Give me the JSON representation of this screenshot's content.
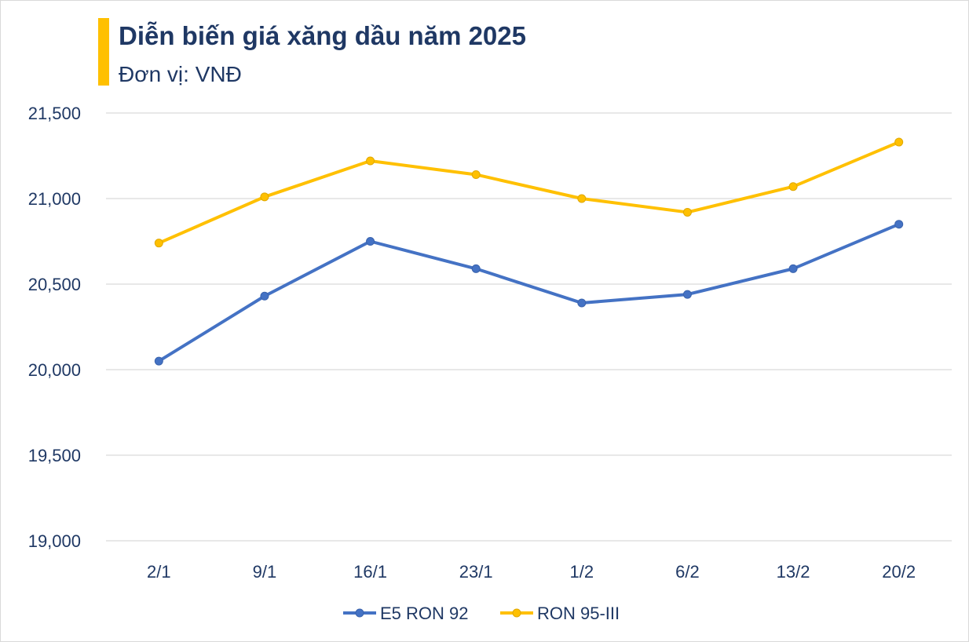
{
  "chart_data": {
    "type": "line",
    "title": "Diễn biến giá xăng dầu năm 2025",
    "subtitle": "Đơn vị: VNĐ",
    "categories": [
      "2/1",
      "9/1",
      "16/1",
      "23/1",
      "1/2",
      "6/2",
      "13/2",
      "20/2"
    ],
    "y_ticks": [
      "19,000",
      "19,500",
      "20,000",
      "20,500",
      "21,000",
      "21,500"
    ],
    "ylim": [
      19000,
      21500
    ],
    "grid": true,
    "legend_position": "bottom",
    "series": [
      {
        "name": "E5 RON 92",
        "color": "#4472c4",
        "values": [
          20050,
          20430,
          20750,
          20590,
          20390,
          20440,
          20590,
          20850
        ]
      },
      {
        "name": "RON 95-III",
        "color": "#ffc000",
        "values": [
          20740,
          21010,
          21220,
          21140,
          21000,
          20920,
          21070,
          21330
        ]
      }
    ]
  },
  "colors": {
    "accent_bar": "#ffc000",
    "text": "#1f3864",
    "gridline": "#d9d9d9"
  }
}
